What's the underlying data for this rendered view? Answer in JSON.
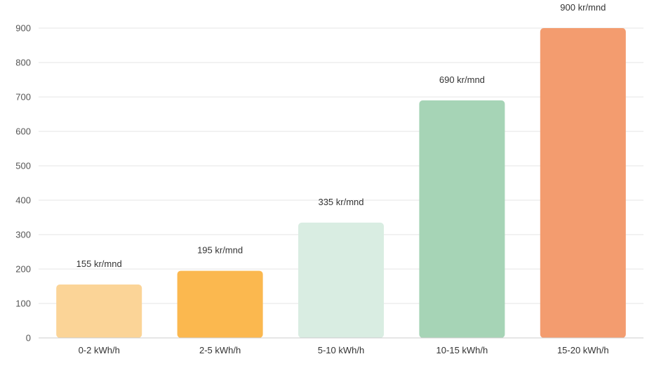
{
  "chart_data": {
    "type": "bar",
    "categories": [
      "0-2 kWh/h",
      "2-5 kWh/h",
      "5-10 kWh/h",
      "10-15 kWh/h",
      "15-20 kWh/h"
    ],
    "values": [
      155,
      195,
      335,
      690,
      900
    ],
    "data_labels": [
      "155 kr/mnd",
      "195 kr/mnd",
      "335 kr/mnd",
      "690 kr/mnd",
      "900 kr/mnd"
    ],
    "colors": [
      "#fbd497",
      "#fbb84f",
      "#d9ede2",
      "#a6d4b6",
      "#f39c6f"
    ],
    "yticks": [
      0,
      100,
      200,
      300,
      400,
      500,
      600,
      700,
      800,
      900
    ],
    "ylim": [
      0,
      900
    ],
    "grid": true,
    "legend": "none",
    "title": "",
    "xlabel": "",
    "ylabel": ""
  }
}
